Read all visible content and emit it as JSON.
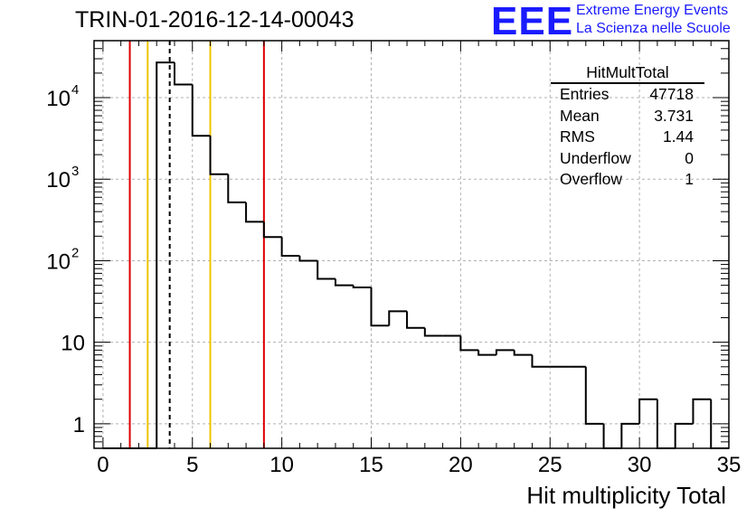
{
  "header": {
    "title": "TRIN-01-2016-12-14-00043",
    "logo_text": "EEE",
    "logo_line1": "Extreme Energy Events",
    "logo_line2": "La Scienza nelle Scuole"
  },
  "stats_box": {
    "name": "HitMultTotal",
    "rows": [
      {
        "label": "Entries",
        "value": "47718"
      },
      {
        "label": "Mean",
        "value": "3.731"
      },
      {
        "label": "RMS",
        "value": "1.44"
      },
      {
        "label": "Underflow",
        "value": "0"
      },
      {
        "label": "Overflow",
        "value": "1"
      }
    ]
  },
  "chart_data": {
    "type": "histogram",
    "title": "TRIN-01-2016-12-14-00043",
    "xlabel": "Hit multiplicity Total",
    "ylabel": "",
    "xlim": [
      -0.5,
      35
    ],
    "ylim": [
      0.5,
      50000
    ],
    "yscale": "log",
    "grid": true,
    "bin_edges_start": 0,
    "bin_width": 1,
    "counts": [
      0,
      0,
      0,
      27000,
      14500,
      3400,
      1150,
      520,
      300,
      195,
      115,
      100,
      60,
      50,
      47,
      16,
      24,
      15,
      12,
      12,
      8,
      7,
      8,
      7,
      5,
      5,
      5,
      1,
      0,
      1,
      2,
      0,
      1,
      2,
      0,
      0
    ],
    "x_ticks": [
      0,
      5,
      10,
      15,
      20,
      25,
      30,
      35
    ],
    "x_tick_labels": [
      "0",
      "5",
      "10",
      "15",
      "20",
      "25",
      "30",
      "35"
    ],
    "y_ticks": [
      1,
      10,
      100,
      1000,
      10000
    ],
    "vlines": [
      {
        "x": 1.5,
        "color": "#dd0000",
        "style": "solid"
      },
      {
        "x": 2.5,
        "color": "#f2c300",
        "style": "solid"
      },
      {
        "x": 3.731,
        "color": "#000000",
        "style": "dashed"
      },
      {
        "x": 6.0,
        "color": "#f2c300",
        "style": "solid"
      },
      {
        "x": 9.0,
        "color": "#dd0000",
        "style": "solid"
      }
    ]
  }
}
